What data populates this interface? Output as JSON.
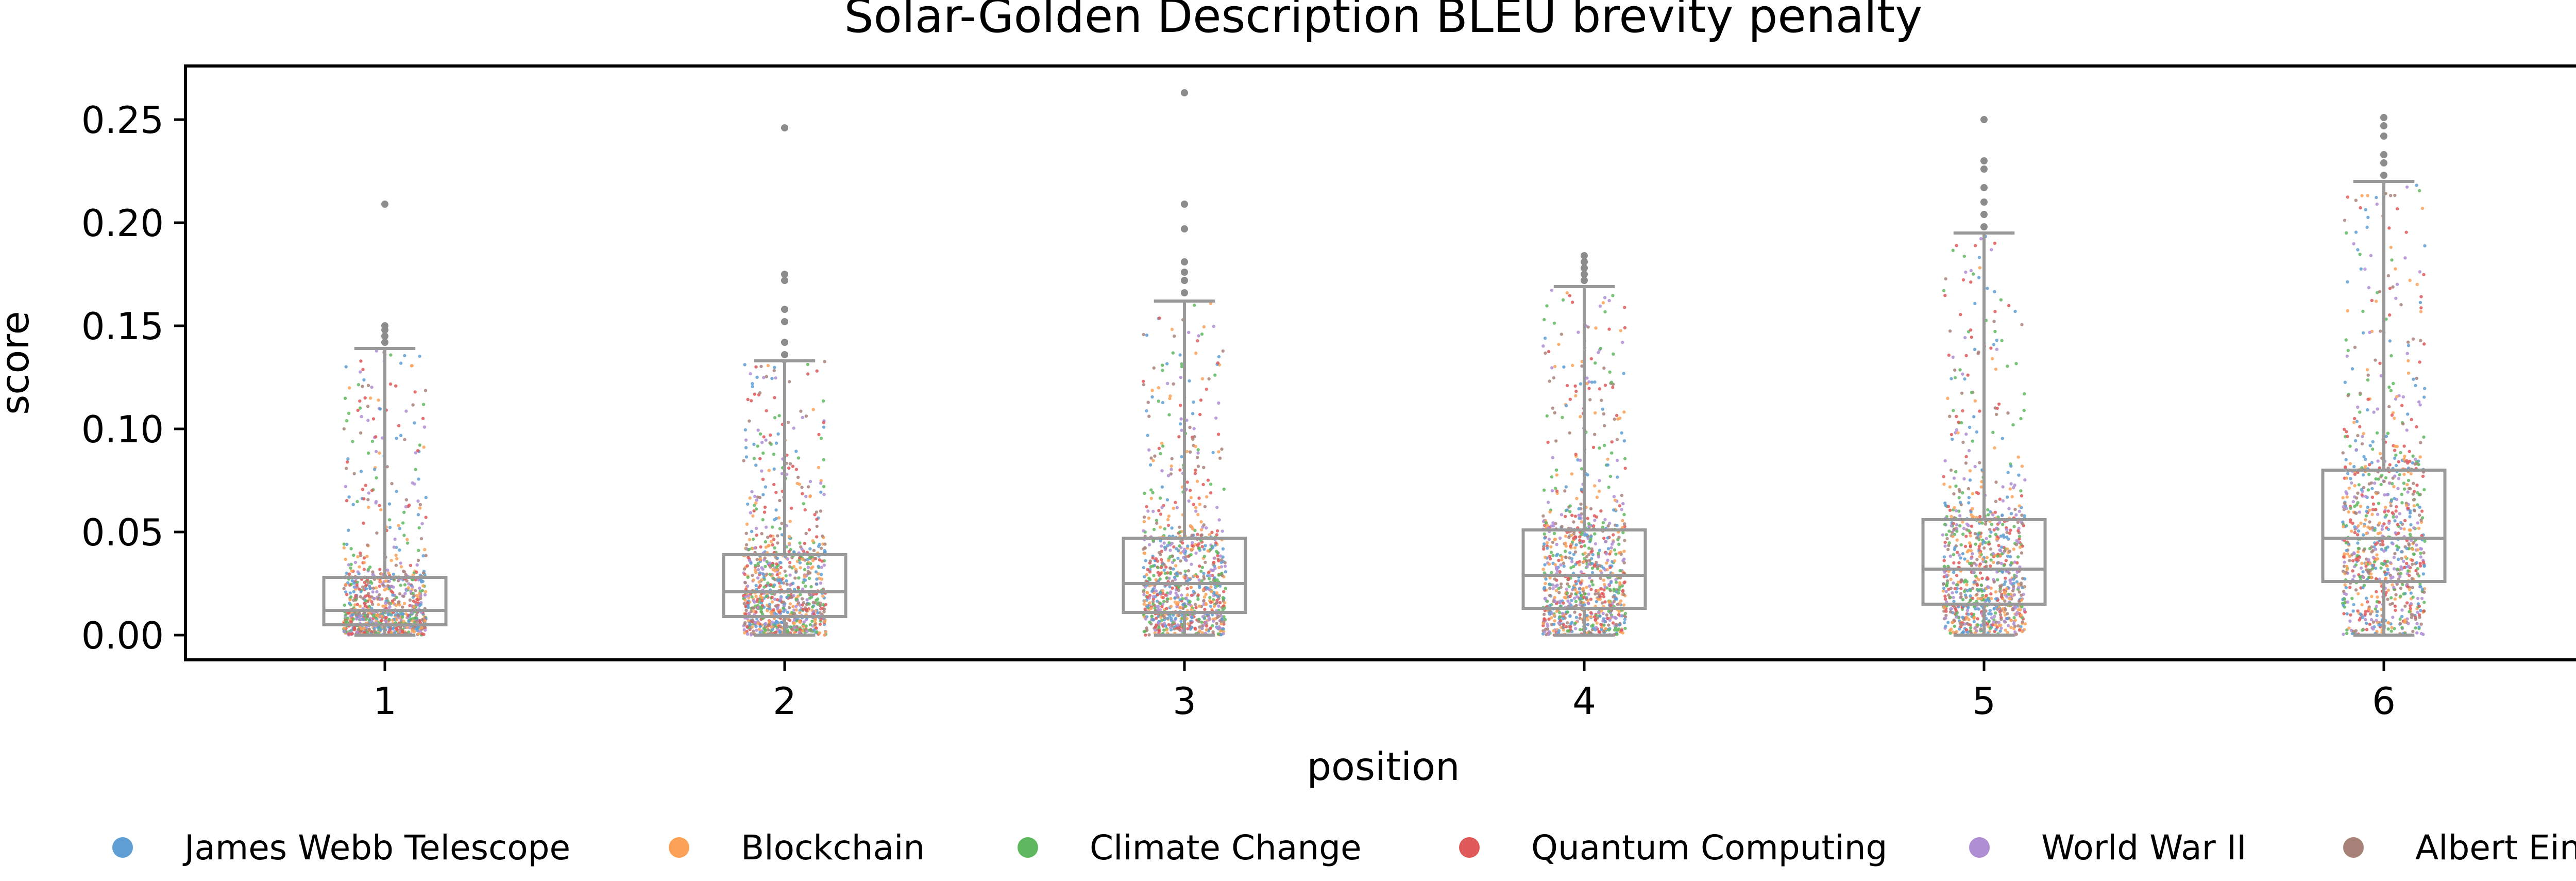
{
  "chart_data": {
    "type": "box",
    "title": "Solar-Golden Description BLEU brevity penalty",
    "xlabel": "position",
    "ylabel": "score",
    "categories": [
      "1",
      "2",
      "3",
      "4",
      "5",
      "6"
    ],
    "ylim": [
      -0.012,
      0.276
    ],
    "yticks": [
      0.0,
      0.05,
      0.1,
      0.15,
      0.2,
      0.25
    ],
    "ytick_labels": [
      "0.00",
      "0.05",
      "0.10",
      "0.15",
      "0.20",
      "0.25"
    ],
    "grid": false,
    "legend_position": "bottom",
    "box_color": "#999999",
    "boxes": [
      {
        "category": "1",
        "whisker_low": 0.0,
        "q1": 0.005,
        "median": 0.012,
        "q3": 0.028,
        "whisker_high": 0.139,
        "outliers": [
          0.142,
          0.145,
          0.148,
          0.15,
          0.209
        ]
      },
      {
        "category": "2",
        "whisker_low": 0.0,
        "q1": 0.009,
        "median": 0.021,
        "q3": 0.039,
        "whisker_high": 0.133,
        "outliers": [
          0.136,
          0.142,
          0.152,
          0.158,
          0.172,
          0.175,
          0.246
        ]
      },
      {
        "category": "3",
        "whisker_low": 0.0,
        "q1": 0.011,
        "median": 0.025,
        "q3": 0.047,
        "whisker_high": 0.162,
        "outliers": [
          0.166,
          0.172,
          0.176,
          0.181,
          0.197,
          0.209,
          0.263
        ]
      },
      {
        "category": "4",
        "whisker_low": 0.0,
        "q1": 0.013,
        "median": 0.029,
        "q3": 0.051,
        "whisker_high": 0.169,
        "outliers": [
          0.172,
          0.175,
          0.178,
          0.181,
          0.184
        ]
      },
      {
        "category": "5",
        "whisker_low": 0.0,
        "q1": 0.015,
        "median": 0.032,
        "q3": 0.056,
        "whisker_high": 0.195,
        "outliers": [
          0.198,
          0.204,
          0.21,
          0.217,
          0.226,
          0.23,
          0.25
        ]
      },
      {
        "category": "6",
        "whisker_low": 0.0,
        "q1": 0.026,
        "median": 0.047,
        "q3": 0.08,
        "whisker_high": 0.22,
        "outliers": [
          0.223,
          0.229,
          0.233,
          0.242,
          0.247,
          0.251
        ]
      }
    ],
    "series": [
      {
        "name": "James Webb Telescope",
        "color": "#5f9fd4"
      },
      {
        "name": "Blockchain",
        "color": "#fca258"
      },
      {
        "name": "Climate Change",
        "color": "#5fb85f"
      },
      {
        "name": "Quantum Computing",
        "color": "#e0595a"
      },
      {
        "name": "World War II",
        "color": "#b08ed3"
      },
      {
        "name": "Albert Einstein",
        "color": "#a9837a"
      }
    ]
  }
}
